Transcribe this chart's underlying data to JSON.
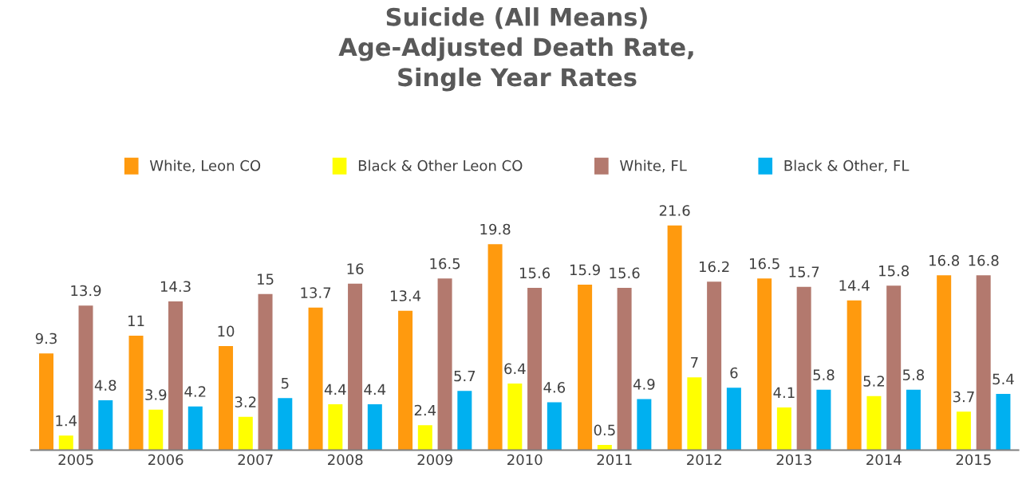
{
  "chart_data": {
    "type": "bar",
    "title": "Suicide (All Means)\nAge-Adjusted Death Rate,\nSingle Year Rates",
    "categories": [
      "2005",
      "2006",
      "2007",
      "2008",
      "2009",
      "2010",
      "2011",
      "2012",
      "2013",
      "2014",
      "2015"
    ],
    "series": [
      {
        "name": "White, Leon CO",
        "color": "#ff9a0e",
        "values": [
          9.3,
          11,
          10,
          13.7,
          13.4,
          19.8,
          15.9,
          21.6,
          16.5,
          14.4,
          16.8
        ]
      },
      {
        "name": "Black & Other Leon CO",
        "color": "#ffff00",
        "values": [
          1.4,
          3.9,
          3.2,
          4.4,
          2.4,
          6.4,
          0.5,
          7,
          4.1,
          5.2,
          3.7
        ]
      },
      {
        "name": "White, FL",
        "color": "#b3796e",
        "values": [
          13.9,
          14.3,
          15,
          16,
          16.5,
          15.6,
          15.6,
          16.2,
          15.7,
          15.8,
          16.8
        ]
      },
      {
        "name": "Black & Other, FL",
        "color": "#00b0f0",
        "values": [
          4.8,
          4.2,
          5,
          4.4,
          5.7,
          4.6,
          4.9,
          6,
          5.8,
          5.8,
          5.4
        ]
      }
    ],
    "data_labels": true,
    "legend": "top",
    "grid": false,
    "tick_labels": "x"
  }
}
